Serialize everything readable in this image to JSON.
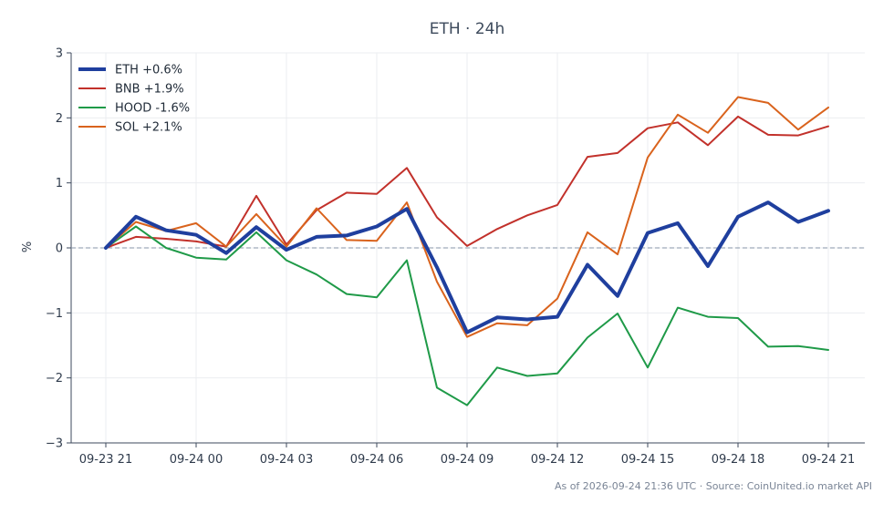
{
  "chart_data": {
    "type": "line",
    "title": "ETH · 24h",
    "ylabel": "%",
    "xlabel": "",
    "ylim": [
      -3,
      3
    ],
    "yticks": [
      3,
      2,
      1,
      0,
      -1,
      -2,
      -3
    ],
    "ytick_labels": [
      "3",
      "2",
      "1",
      "0",
      "−1",
      "−2",
      "−3"
    ],
    "xticks": [
      "09-23 21",
      "09-24 00",
      "09-24 03",
      "09-24 06",
      "09-24 09",
      "09-24 12",
      "09-24 15",
      "09-24 18",
      "09-24 21"
    ],
    "xtick_hours": [
      0,
      3,
      6,
      9,
      12,
      15,
      18,
      21,
      24
    ],
    "x": [
      0,
      1,
      2,
      3,
      4,
      5,
      6,
      7,
      8,
      9,
      10,
      11,
      12,
      13,
      14,
      15,
      16,
      17,
      18,
      19,
      20,
      21,
      22,
      23,
      24
    ],
    "grid": true,
    "zero_line": true,
    "legend_position": "top-left",
    "series": [
      {
        "name": "ETH +0.6%",
        "color": "#1f3f9e",
        "width": 4,
        "values": [
          0,
          0.48,
          0.27,
          0.2,
          -0.08,
          0.32,
          -0.03,
          0.17,
          0.19,
          0.33,
          0.6,
          -0.3,
          -1.3,
          -1.07,
          -1.1,
          -1.06,
          -0.26,
          -0.74,
          0.23,
          0.38,
          -0.28,
          0.48,
          0.7,
          0.4,
          0.57
        ]
      },
      {
        "name": "BNB +1.9%",
        "color": "#c2312b",
        "width": 2,
        "values": [
          0,
          0.17,
          0.14,
          0.1,
          0.02,
          0.8,
          0.05,
          0.58,
          0.85,
          0.83,
          1.23,
          0.47,
          0.03,
          0.29,
          0.5,
          0.66,
          1.4,
          1.46,
          1.84,
          1.93,
          1.58,
          2.02,
          1.74,
          1.73,
          1.87
        ]
      },
      {
        "name": "HOOD -1.6%",
        "color": "#1f9a48",
        "width": 2,
        "values": [
          0,
          0.33,
          0.0,
          -0.15,
          -0.18,
          0.24,
          -0.19,
          -0.41,
          -0.71,
          -0.76,
          -0.19,
          -2.15,
          -2.42,
          -1.84,
          -1.97,
          -1.93,
          -1.38,
          -1.01,
          -1.84,
          -0.92,
          -1.06,
          -1.08,
          -1.52,
          -1.51,
          -1.57
        ]
      },
      {
        "name": "SOL +2.1%",
        "color": "#d9631d",
        "width": 2,
        "values": [
          0,
          0.4,
          0.26,
          0.38,
          0.02,
          0.52,
          0.02,
          0.61,
          0.12,
          0.11,
          0.7,
          -0.52,
          -1.37,
          -1.16,
          -1.19,
          -0.78,
          0.24,
          -0.1,
          1.39,
          2.05,
          1.77,
          2.32,
          2.23,
          1.82,
          2.16
        ]
      }
    ],
    "footer": "As of 2026-09-24 21:36 UTC · Source: CoinUnited.io market API"
  }
}
